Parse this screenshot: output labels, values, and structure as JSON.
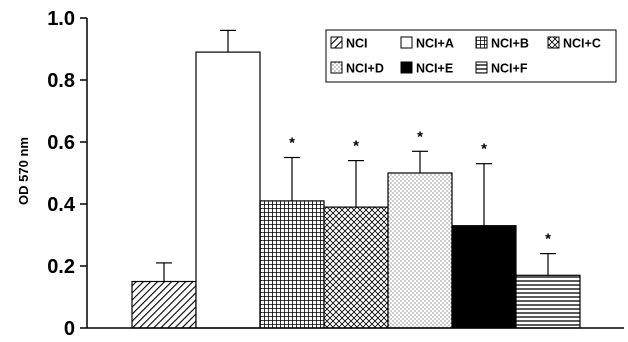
{
  "chart_data": {
    "type": "bar",
    "categories": [
      "NCI",
      "NCI+A",
      "NCI+B",
      "NCI+C",
      "NCI+D",
      "NCI+E",
      "NCI+F"
    ],
    "values": [
      0.15,
      0.89,
      0.41,
      0.39,
      0.5,
      0.33,
      0.17
    ],
    "errors": [
      0.06,
      0.07,
      0.14,
      0.15,
      0.07,
      0.2,
      0.07
    ],
    "annotations": [
      "",
      "",
      "*",
      "*",
      "*",
      "*",
      "*"
    ],
    "patterns": [
      "diagonal-hatch",
      "white",
      "square-grid",
      "cross-hatch",
      "dots",
      "solid-black",
      "horizontal-lines"
    ],
    "ylabel": "OD 570 nm",
    "xlabel": "",
    "ylim": [
      0,
      1.0
    ],
    "yticks": [
      "0",
      "0.2",
      "0.4",
      "0.6",
      "0.8",
      "1.0"
    ],
    "legend": {
      "placement": "top-right",
      "rows": [
        [
          "NCI",
          "NCI+A",
          "NCI+B",
          "NCI+C"
        ],
        [
          "NCI+D",
          "NCI+E",
          "NCI+F"
        ]
      ]
    },
    "grid": false
  }
}
